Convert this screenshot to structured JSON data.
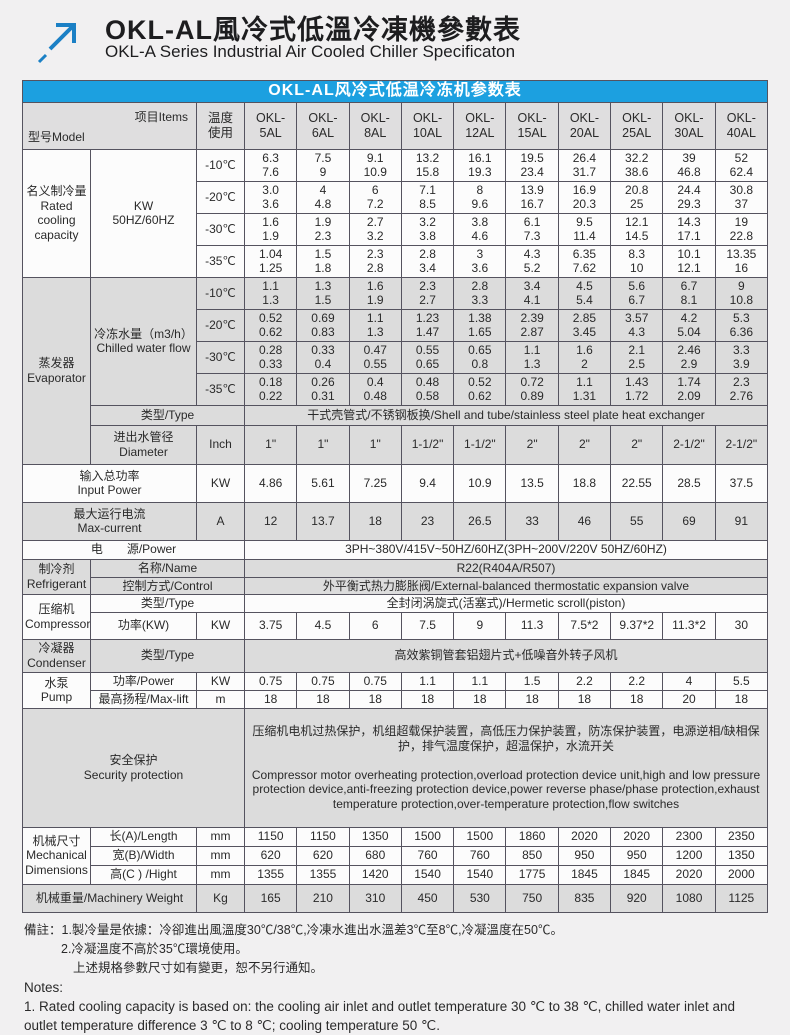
{
  "colors": {
    "banner": "#1ca0e0",
    "logo": "#1b80c5",
    "shade": "#dcdcdc",
    "grid": "#55535f"
  },
  "page": {
    "title_zh": "OKL-AL風冷式低溫冷凍機參數表",
    "title_en": "OKL-A Series Industrial Air Cooled Chiller Specificaton"
  },
  "table": {
    "banner": "OKL-AL风冷式低温冷冻机参数表",
    "corner": {
      "model": "型号Model",
      "items": "项目Items"
    },
    "temp_header": "温度\n使用",
    "models": [
      "OKL-\n5AL",
      "OKL-\n6AL",
      "OKL-\n8AL",
      "OKL-\n10AL",
      "OKL-\n12AL",
      "OKL-\n15AL",
      "OKL-\n20AL",
      "OKL-\n25AL",
      "OKL-\n30AL",
      "OKL-\n40AL"
    ],
    "cooling": {
      "label": "名义制冷量\nRated\ncooling\ncapacity",
      "unit": "KW\n50HZ/60HZ",
      "temps": [
        "-10℃",
        "-20℃",
        "-30℃",
        "-35℃"
      ],
      "values": [
        [
          "6.3\n7.6",
          "7.5\n9",
          "9.1\n10.9",
          "13.2\n15.8",
          "16.1\n19.3",
          "19.5\n23.4",
          "26.4\n31.7",
          "32.2\n38.6",
          "39\n46.8",
          "52\n62.4"
        ],
        [
          "3.0\n3.6",
          "4\n4.8",
          "6\n7.2",
          "7.1\n8.5",
          "8\n9.6",
          "13.9\n16.7",
          "16.9\n20.3",
          "20.8\n25",
          "24.4\n29.3",
          "30.8\n37"
        ],
        [
          "1.6\n1.9",
          "1.9\n2.3",
          "2.7\n3.2",
          "3.2\n3.8",
          "3.8\n4.6",
          "6.1\n7.3",
          "9.5\n11.4",
          "12.1\n14.5",
          "14.3\n17.1",
          "19\n22.8"
        ],
        [
          "1.04\n1.25",
          "1.5\n1.8",
          "2.3\n2.8",
          "2.8\n3.4",
          "3\n3.6",
          "4.3\n5.2",
          "6.35\n7.62",
          "8.3\n10",
          "10.1\n12.1",
          "13.35\n16"
        ]
      ]
    },
    "evaporator": {
      "label": "蒸发器\nEvaporator",
      "flow_label": "冷冻水量（m3/h）\nChilled water flow",
      "temps": [
        "-10℃",
        "-20℃",
        "-30℃",
        "-35℃"
      ],
      "values": [
        [
          "1.1\n1.3",
          "1.3\n1.5",
          "1.6\n1.9",
          "2.3\n2.7",
          "2.8\n3.3",
          "3.4\n4.1",
          "4.5\n5.4",
          "5.6\n6.7",
          "6.7\n8.1",
          "9\n10.8"
        ],
        [
          "0.52\n0.62",
          "0.69\n0.83",
          "1.1\n1.3",
          "1.23\n1.47",
          "1.38\n1.65",
          "2.39\n2.87",
          "2.85\n3.45",
          "3.57\n4.3",
          "4.2\n5.04",
          "5.3\n6.36"
        ],
        [
          "0.28\n0.33",
          "0.33\n0.4",
          "0.47\n0.55",
          "0.55\n0.65",
          "0.65\n0.8",
          "1.1\n1.3",
          "1.6\n2",
          "2.1\n2.5",
          "2.46\n2.9",
          "3.3\n3.9"
        ],
        [
          "0.18\n0.22",
          "0.26\n0.31",
          "0.4\n0.48",
          "0.48\n0.58",
          "0.52\n0.62",
          "0.72\n0.89",
          "1.1\n1.31",
          "1.43\n1.72",
          "1.74\n2.09",
          "2.3\n2.76"
        ]
      ],
      "type_label": "类型/Type",
      "type_value": "干式壳管式/不锈钢板换/Shell and tube/stainless steel plate heat exchanger",
      "diameter_label": "进出水管径\nDiameter",
      "diameter_unit": "Inch",
      "diameter_values": [
        "1\"",
        "1\"",
        "1\"",
        "1-1/2\"",
        "1-1/2\"",
        "2\"",
        "2\"",
        "2\"",
        "2-1/2\"",
        "2-1/2\""
      ]
    },
    "input_power": {
      "label": "输入总功率\nInput Power",
      "unit": "KW",
      "values": [
        "4.86",
        "5.61",
        "7.25",
        "9.4",
        "10.9",
        "13.5",
        "18.8",
        "22.55",
        "28.5",
        "37.5"
      ]
    },
    "max_current": {
      "label": "最大运行电流\nMax-current",
      "unit": "A",
      "values": [
        "12",
        "13.7",
        "18",
        "23",
        "26.5",
        "33",
        "46",
        "55",
        "69",
        "91"
      ]
    },
    "power_supply": {
      "label": "电　　源/Power",
      "value": "3PH~380V/415V~50HZ/60HZ(3PH~200V/220V  50HZ/60HZ)"
    },
    "refrigerant": {
      "label": "制冷剂\nRefrigerant",
      "name_label": "名称/Name",
      "name_value": "R22(R404A/R507)",
      "control_label": "控制方式/Control",
      "control_value": "外平衡式热力膨胀阀/External-balanced thermostatic expansion valve"
    },
    "compressor": {
      "label": "压缩机\nCompressor",
      "type_label": "类型/Type",
      "type_value": "全封闭涡旋式(活塞式)/Hermetic scroll(piston)",
      "power_label": "功率(KW)",
      "power_unit": "KW",
      "power_values": [
        "3.75",
        "4.5",
        "6",
        "7.5",
        "9",
        "11.3",
        "7.5*2",
        "9.37*2",
        "11.3*2",
        "30"
      ]
    },
    "condenser": {
      "label": "冷凝器\nCondenser",
      "type_label": "类型/Type",
      "type_value": "高效紫铜管套铝翅片式+低噪音外转子风机"
    },
    "pump": {
      "label": "水泵\nPump",
      "power_label": "功率/Power",
      "power_unit": "KW",
      "power_values": [
        "0.75",
        "0.75",
        "0.75",
        "1.1",
        "1.1",
        "1.5",
        "2.2",
        "2.2",
        "4",
        "5.5"
      ],
      "lift_label": "最高扬程/Max-lift",
      "lift_unit": "m",
      "lift_values": [
        "18",
        "18",
        "18",
        "18",
        "18",
        "18",
        "18",
        "18",
        "20",
        "18"
      ]
    },
    "security": {
      "label": "安全保护\nSecurity protection",
      "value_zh": "压缩机电机过热保护，机组超载保护装置，高低压力保护装置，防冻保护装置，电源逆相/缺相保护，排气温度保护，超温保护，水流开关",
      "value_en": " Compressor motor overheating protection,overload protection device unit,high and low pressure protection device,anti-freezing protection device,power reverse phase/phase protection,exhaust temperature protection,over-temperature protection,flow switches"
    },
    "dimensions": {
      "label": "机械尺寸\nMechanical\nDimensions",
      "length_label": "长(A)/Length",
      "length_unit": "mm",
      "length_values": [
        "1150",
        "1150",
        "1350",
        "1500",
        "1500",
        "1860",
        "2020",
        "2020",
        "2300",
        "2350"
      ],
      "width_label": "宽(B)/Width",
      "width_unit": "mm",
      "width_values": [
        "620",
        "620",
        "680",
        "760",
        "760",
        "850",
        "950",
        "950",
        "1200",
        "1350"
      ],
      "height_label": "高(C ) /Hight",
      "height_unit": "mm",
      "height_values": [
        "1355",
        "1355",
        "1420",
        "1540",
        "1540",
        "1775",
        "1845",
        "1845",
        "2020",
        "2000"
      ]
    },
    "weight": {
      "label": "机械重量/Machinery Weight",
      "unit": "Kg",
      "values": [
        "165",
        "210",
        "310",
        "450",
        "530",
        "750",
        "835",
        "920",
        "1080",
        "1125"
      ]
    }
  },
  "notes": {
    "zh1": "備註：1.製冷量是依據：冷卻進出風溫度30℃/38℃,冷凍水進出水溫差3℃至8℃,冷凝溫度在50℃。",
    "zh2": "2.冷凝溫度不高於35℃環境使用。",
    "zh3": "上述規格參數尺寸如有變更，恕不另行通知。",
    "en0": "Notes:",
    "en1": "1. Rated cooling capacity is based on: the cooling air inlet and outlet temperature 30 ℃ to 38 ℃, chilled water inlet and outlet temperature difference 3 ℃ to 8 ℃; cooling temperature 50 ℃."
  }
}
